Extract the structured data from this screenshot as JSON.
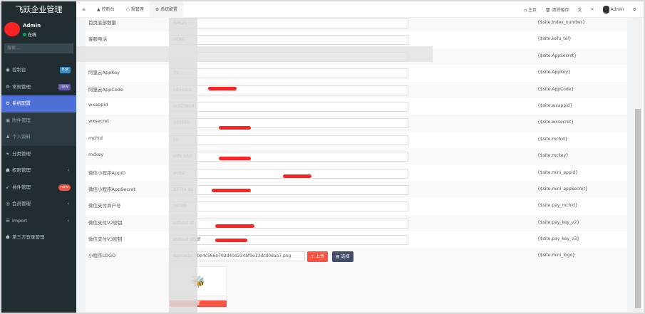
{
  "app_title": "飞跃企业管理",
  "user": {
    "name": "Admin",
    "status": "在线"
  },
  "search_placeholder": "搜索...",
  "sidebar": [
    {
      "label": "控制台",
      "icon": "dashboard-icon",
      "badge": "hot",
      "badge_color": "#3c8dbc"
    },
    {
      "label": "常规管理",
      "icon": "cogs-icon",
      "badge": "new",
      "badge_color": "#605ca8"
    },
    {
      "label": "系统配置",
      "icon": "gear-icon",
      "active": true
    },
    {
      "label": "附件管理",
      "icon": "file-image-icon"
    },
    {
      "label": "个人资料",
      "icon": "user-icon"
    },
    {
      "label": "分类管理",
      "icon": "leaf-icon"
    },
    {
      "label": "权限管理",
      "icon": "group-icon",
      "chevron": true
    },
    {
      "label": "插件管理",
      "icon": "rocket-icon",
      "badge": "new",
      "badge_color": "#f75444"
    },
    {
      "label": "会员管理",
      "icon": "user-circle-icon",
      "chevron": true
    },
    {
      "label": "import",
      "icon": "list-icon",
      "chevron": true
    },
    {
      "label": "第三方登录管理",
      "icon": "group-icon"
    }
  ],
  "tabs": [
    {
      "label": "控制台"
    },
    {
      "label": "规管理"
    },
    {
      "label": "系统配置"
    }
  ],
  "topbar": {
    "home": "主页",
    "clear_cache": "清除缓存",
    "admin": "Admin"
  },
  "rows": [
    {
      "label": "首页底部数量",
      "value": "54620",
      "var": "{$site.index_number}"
    },
    {
      "label": "客服电话",
      "value": "0000",
      "var": "{$site.kefu_tel}"
    },
    {
      "label": "",
      "value": "",
      "var": "{$site.AppSecret}"
    },
    {
      "label": "阿里云AppKey",
      "value": "79",
      "var": "{$site.AppKey}"
    },
    {
      "label": "阿里云AppCode",
      "value": "bd44dcb",
      "var": "{$site.AppCode}"
    },
    {
      "label": "wxappid",
      "value": "cc0238b9",
      "var": "{$site.wxappid}"
    },
    {
      "label": "wxsecret",
      "value": "9d9940",
      "var": "{$site.wxsecret}"
    },
    {
      "label": "mchid",
      "value": "10",
      "var": "{$site.mchid}"
    },
    {
      "label": "mckey",
      "value": "sdfs sdsf",
      "var": "{$site.mckey}"
    },
    {
      "label": "微信小程序AppID",
      "value": "wxb2",
      "var": "{$site.mini_appid}"
    },
    {
      "label": "微信小程序AppSecret",
      "value": "237c4 da",
      "var": "{$site.mini_appSecret}"
    },
    {
      "label": "微信支付商户号",
      "value": "16309",
      "var": "{$site.pay_mchid}"
    },
    {
      "label": "微信支付V2密钥",
      "value": "sdfsdsf sf",
      "var": "{$site.pay_key_v2}"
    },
    {
      "label": "微信支付V3密钥",
      "value": "asdasd dfsdf",
      "var": "{$site.pay_key_v3}"
    }
  ],
  "logo_row": {
    "label": "小程序LOGO",
    "value": "/uploads/ 70e4c566e702d40d234bf9e13dcd0daa7.png",
    "var": "{$site.mini_logo}",
    "upload": "上传",
    "choose": "选择",
    "upload_color": "#f75444",
    "choose_color": "#444c69"
  }
}
